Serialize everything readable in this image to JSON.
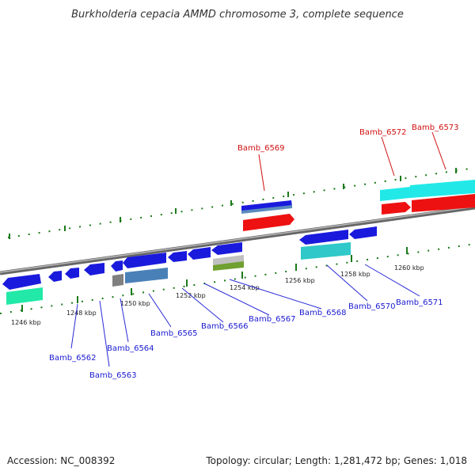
{
  "title": "Burkholderia cepacia AMMD chromosome 3, complete sequence",
  "footer": {
    "accession": "Accession: NC_008392",
    "summary": "Topology: circular; Length: 1,281,472 bp; Genes: 1,018"
  },
  "scale_labels": [
    "1246 kbp",
    "1248 kbp",
    "1250 kbp",
    "1252 kbp",
    "1254 kbp",
    "1256 kbp",
    "1258 kbp",
    "1260 kbp"
  ],
  "gene_labels_upper": [
    "Bamb_6569",
    "Bamb_6572",
    "Bamb_6573"
  ],
  "gene_labels_lower": [
    "Bamb_6562",
    "Bamb_6563",
    "Bamb_6564",
    "Bamb_6565",
    "Bamb_6566",
    "Bamb_6567",
    "Bamb_6568",
    "Bamb_6570",
    "Bamb_6571"
  ],
  "colors": {
    "forward_cds": "#ee1111",
    "forward_cyan": "#22e8e8",
    "reverse_cds": "#1a1add",
    "steelblue": "#4a80b8",
    "teal": "#30c8c8",
    "green_rna": "#22e8a8",
    "olive": "#70a030",
    "grey": "#808080",
    "backbone": "#888888",
    "ticks": "#1a7a1a"
  }
}
